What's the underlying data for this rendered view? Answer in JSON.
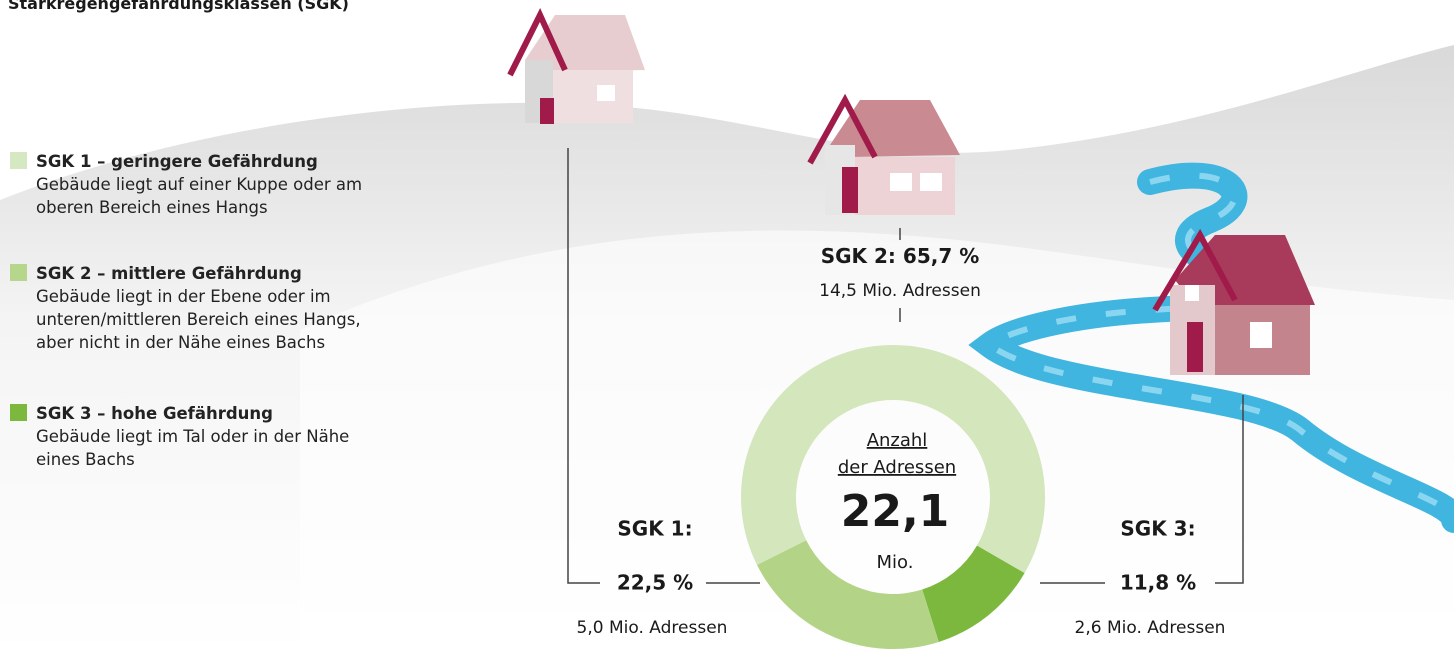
{
  "chart_data": {
    "type": "pie",
    "title": "Starkregengefährdungsklassen (SGK)",
    "categories": [
      "SGK 1:",
      "SGK 2:",
      "SGK 3:"
    ],
    "values": [
      22.5,
      65.7,
      11.8
    ],
    "value_labels": [
      "22,5 %",
      "65,7 %",
      "11,8 %"
    ],
    "sub_labels": [
      "5,0 Mio. Adressen",
      "14,5 Mio. Adressen",
      "2,6 Mio. Adressen"
    ],
    "colors": [
      "#b3d486",
      "#d4e6bb",
      "#7cb83e"
    ],
    "center_label": {
      "lines": [
        "Anzahl",
        "der Adressen"
      ],
      "value": "22,1",
      "unit": "Mio."
    },
    "legend": [
      {
        "name": "SGK 1 – geringere Gefährdung",
        "description": "Gebäude liegt auf einer Kuppe oder am oberen Bereich eines Hangs",
        "color": "#d6e8c1"
      },
      {
        "name": "SGK 2 – mittlere Gefährdung",
        "description": "Gebäude liegt in der Ebene oder im unteren/mittleren Bereich eines Hangs, aber nicht in der Nähe eines Bachs",
        "color": "#b6d78b"
      },
      {
        "name": "SGK 3 – hohe Gefährdung",
        "description": "Gebäude liegt im Tal oder in der Nähe eines Bachs",
        "color": "#7cb83e"
      }
    ]
  }
}
